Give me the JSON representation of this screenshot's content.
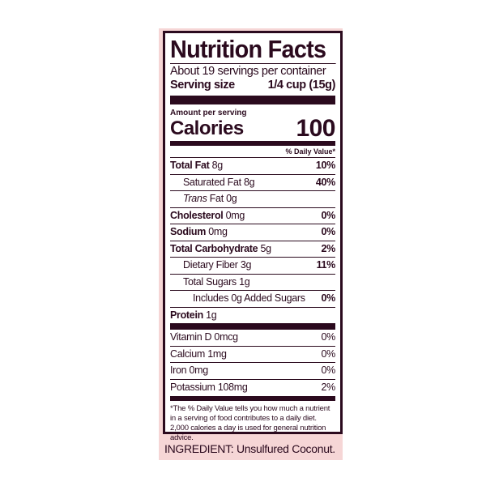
{
  "title": "Nutrition Facts",
  "servings": "About 19 servings per container",
  "serving_size": {
    "label": "Serving size",
    "value": "1/4 cup (15g)"
  },
  "amount_per_serving": "Amount per serving",
  "calories": {
    "label": "Calories",
    "value": "100"
  },
  "daily_value_header": "% Daily Value*",
  "nutrients": [
    {
      "name": "Total Fat",
      "amount": "8g",
      "dv": "10%"
    },
    {
      "name": "Saturated Fat",
      "amount": "8g",
      "dv": "40%"
    },
    {
      "name": "Trans",
      "name_suffix": "Fat",
      "amount": "0g",
      "dv": ""
    },
    {
      "name": "Cholesterol",
      "amount": "0mg",
      "dv": "0%"
    },
    {
      "name": "Sodium",
      "amount": "0mg",
      "dv": "0%"
    },
    {
      "name": "Total Carbohydrate",
      "amount": "5g",
      "dv": "2%"
    },
    {
      "name": "Dietary Fiber",
      "amount": "3g",
      "dv": "11%"
    },
    {
      "name": "Total Sugars",
      "amount": "1g",
      "dv": ""
    },
    {
      "name": "Includes 0g Added Sugars",
      "amount": "",
      "dv": "0%"
    },
    {
      "name": "Protein",
      "amount": "1g",
      "dv": ""
    }
  ],
  "vitamins": [
    {
      "text": "Vitamin D 0mcg",
      "dv": "0%"
    },
    {
      "text": "Calcium 1mg",
      "dv": "0%"
    },
    {
      "text": "Iron 0mg",
      "dv": "0%"
    },
    {
      "text": "Potassium 108mg",
      "dv": "2%"
    }
  ],
  "footnote": "*The % Daily Value tells you how much a nutrient in a serving of food contributes to a daily diet. 2,000 calories a day is used for general nutrition advice.",
  "ingredient": "INGREDIENT: Unsulfured Coconut.",
  "colors": {
    "text": "#2b0a1e",
    "background": "#f6d6d6"
  }
}
